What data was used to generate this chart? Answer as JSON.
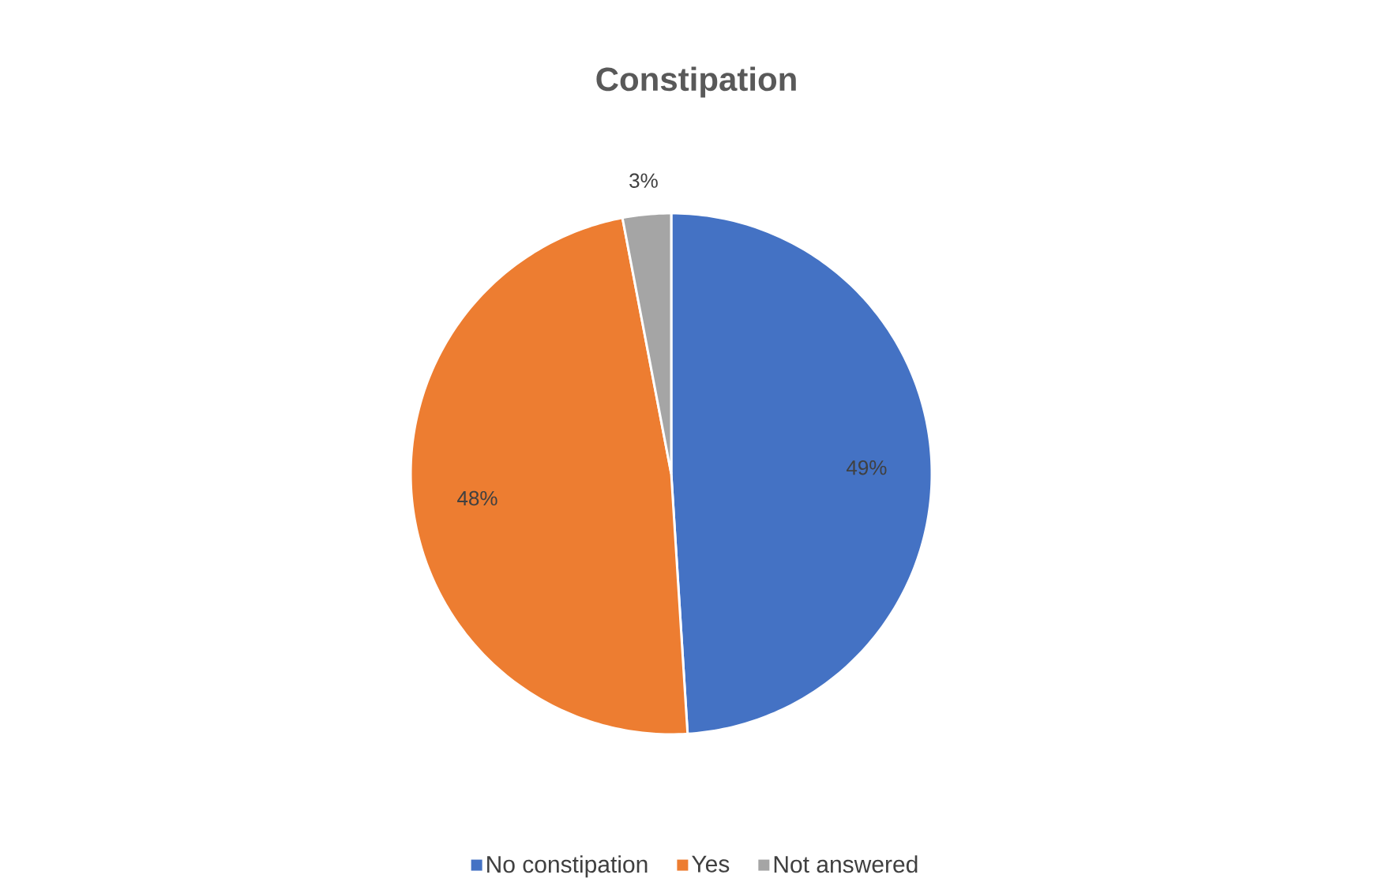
{
  "chart_data": {
    "type": "pie",
    "title": "Constipation",
    "categories": [
      "No constipation",
      "Yes",
      "Not answered"
    ],
    "values": [
      49,
      48,
      3
    ],
    "colors": [
      "#4472c4",
      "#ed7d31",
      "#a5a5a5"
    ],
    "value_labels": [
      "49%",
      "48%",
      "3%"
    ],
    "legend": "bottom"
  }
}
